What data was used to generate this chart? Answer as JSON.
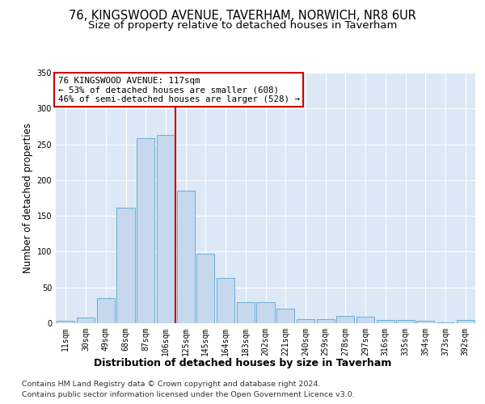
{
  "title": "76, KINGSWOOD AVENUE, TAVERHAM, NORWICH, NR8 6UR",
  "subtitle": "Size of property relative to detached houses in Taverham",
  "xlabel": "Distribution of detached houses by size in Taverham",
  "ylabel": "Number of detached properties",
  "categories": [
    "11sqm",
    "30sqm",
    "49sqm",
    "68sqm",
    "87sqm",
    "106sqm",
    "125sqm",
    "145sqm",
    "164sqm",
    "183sqm",
    "202sqm",
    "221sqm",
    "240sqm",
    "259sqm",
    "278sqm",
    "297sqm",
    "316sqm",
    "335sqm",
    "354sqm",
    "373sqm",
    "392sqm"
  ],
  "values": [
    3,
    8,
    35,
    161,
    258,
    263,
    185,
    97,
    63,
    29,
    29,
    20,
    6,
    6,
    10,
    9,
    5,
    4,
    3,
    1,
    4
  ],
  "bar_color": "#c5d8ee",
  "bar_edgecolor": "#6aaed6",
  "vline_x": 5.5,
  "vline_color": "#cc0000",
  "annotation_line1": "76 KINGSWOOD AVENUE: 117sqm",
  "annotation_line2": "← 53% of detached houses are smaller (608)",
  "annotation_line3": "46% of semi-detached houses are larger (528) →",
  "annotation_box_facecolor": "white",
  "annotation_box_edgecolor": "#cc0000",
  "ylim_max": 350,
  "yticks": [
    0,
    50,
    100,
    150,
    200,
    250,
    300,
    350
  ],
  "footer1": "Contains HM Land Registry data © Crown copyright and database right 2024.",
  "footer2": "Contains public sector information licensed under the Open Government Licence v3.0.",
  "bg_color": "#dce8f5",
  "title_fontsize": 10.5,
  "subtitle_fontsize": 9.5,
  "ylabel_fontsize": 8.5,
  "xlabel_fontsize": 9,
  "tick_fontsize": 7,
  "footer_fontsize": 6.8,
  "annot_fontsize": 7.8
}
